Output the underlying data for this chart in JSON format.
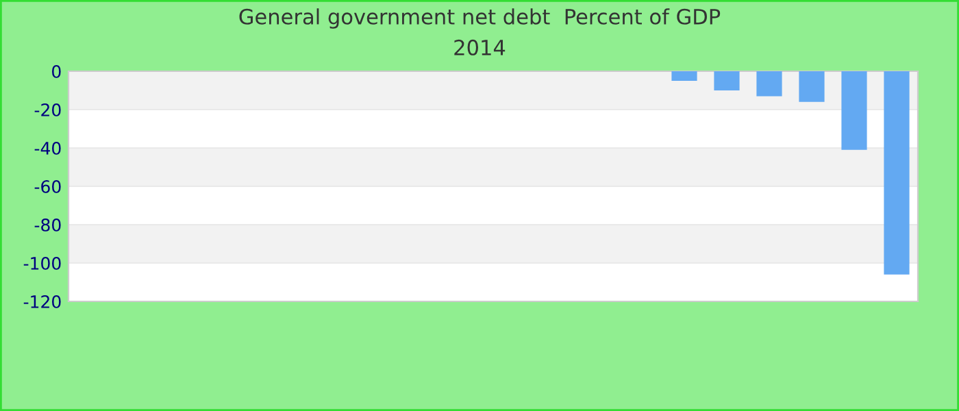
{
  "chart_data": {
    "type": "bar",
    "title": "General government net debt  Percent of GDP",
    "subtitle": "2014",
    "categories": [
      null,
      null,
      null,
      null,
      null,
      null,
      null,
      null,
      null,
      null,
      null,
      null,
      null,
      null,
      null,
      null,
      null,
      null,
      null,
      null
    ],
    "values": [
      0,
      0,
      0,
      0,
      0,
      0,
      0,
      0,
      0,
      0,
      0,
      0,
      0,
      0,
      -5,
      -10,
      -13,
      -16,
      -41,
      -106
    ],
    "color": "#63a9f2",
    "ylim": [
      -120,
      0
    ],
    "yticks": [
      -120,
      -100,
      -80,
      -60,
      -40,
      -20,
      0
    ],
    "grid": "y",
    "legend": false
  }
}
